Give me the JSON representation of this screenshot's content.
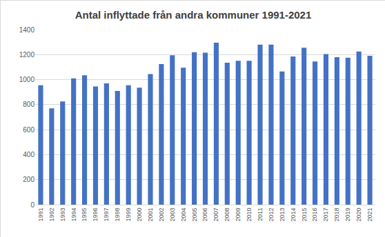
{
  "chart_data": {
    "type": "bar",
    "title": "Antal inflyttade från andra kommuner 1991-2021",
    "categories": [
      "1991",
      "1992",
      "1993",
      "1994",
      "1995",
      "1996",
      "1997",
      "1998",
      "1999",
      "2000",
      "2001",
      "2002",
      "2003",
      "2004",
      "2005",
      "2006",
      "2007",
      "2008",
      "2009",
      "2010",
      "2011",
      "2012",
      "2013",
      "2014",
      "2015",
      "2016",
      "2017",
      "2018",
      "2019",
      "2020",
      "2021"
    ],
    "values": [
      955,
      770,
      825,
      1010,
      1035,
      945,
      970,
      910,
      955,
      935,
      1045,
      1125,
      1195,
      1095,
      1220,
      1215,
      1295,
      1135,
      1150,
      1150,
      1280,
      1280,
      1065,
      1185,
      1255,
      1145,
      1205,
      1180,
      1175,
      1225,
      1190
    ],
    "color": "#4472c4",
    "ylim": [
      0,
      1400
    ],
    "yticks": [
      0,
      200,
      400,
      600,
      800,
      1000,
      1200,
      1400
    ],
    "grid": true
  }
}
